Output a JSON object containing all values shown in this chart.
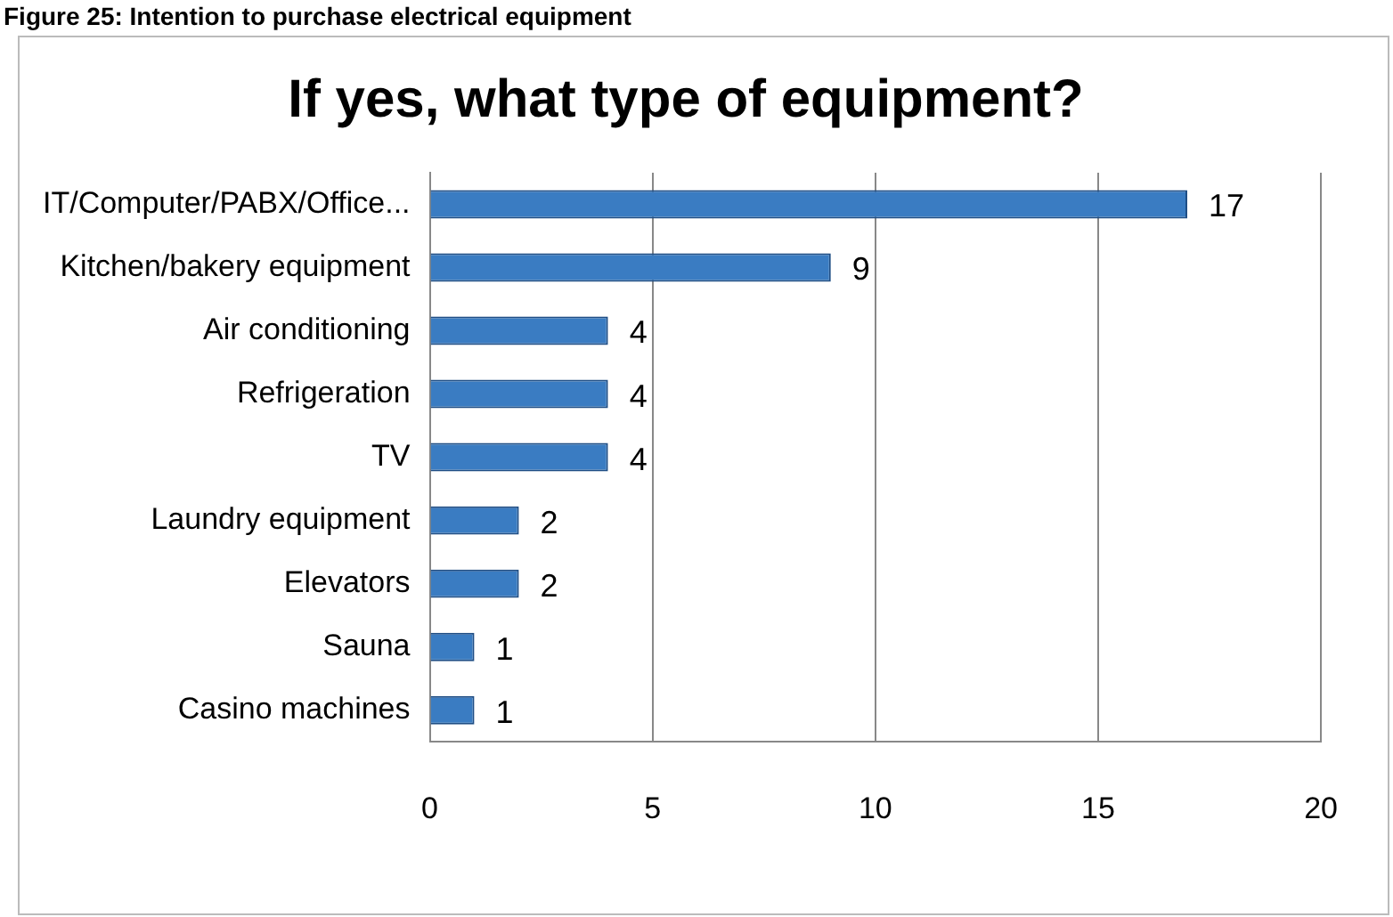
{
  "chart_data": {
    "type": "bar",
    "orientation": "horizontal",
    "title": "If yes, what type of equipment?",
    "annotations": [
      "Figure 25: Intention to purchase electrical equipment"
    ],
    "categories": [
      "IT/Computer/PABX/Office...",
      "Kitchen/bakery equipment",
      "Air conditioning",
      "Refrigeration",
      "TV",
      "Laundry equipment",
      "Elevators",
      "Sauna",
      "Casino machines"
    ],
    "values": [
      17,
      9,
      4,
      4,
      4,
      2,
      2,
      1,
      1
    ],
    "color": "#3a7cc2",
    "xlim": [
      0,
      20
    ],
    "xticks": [
      0,
      5,
      10,
      15,
      20
    ],
    "grid": "x",
    "data_labels": true,
    "legend": false
  }
}
